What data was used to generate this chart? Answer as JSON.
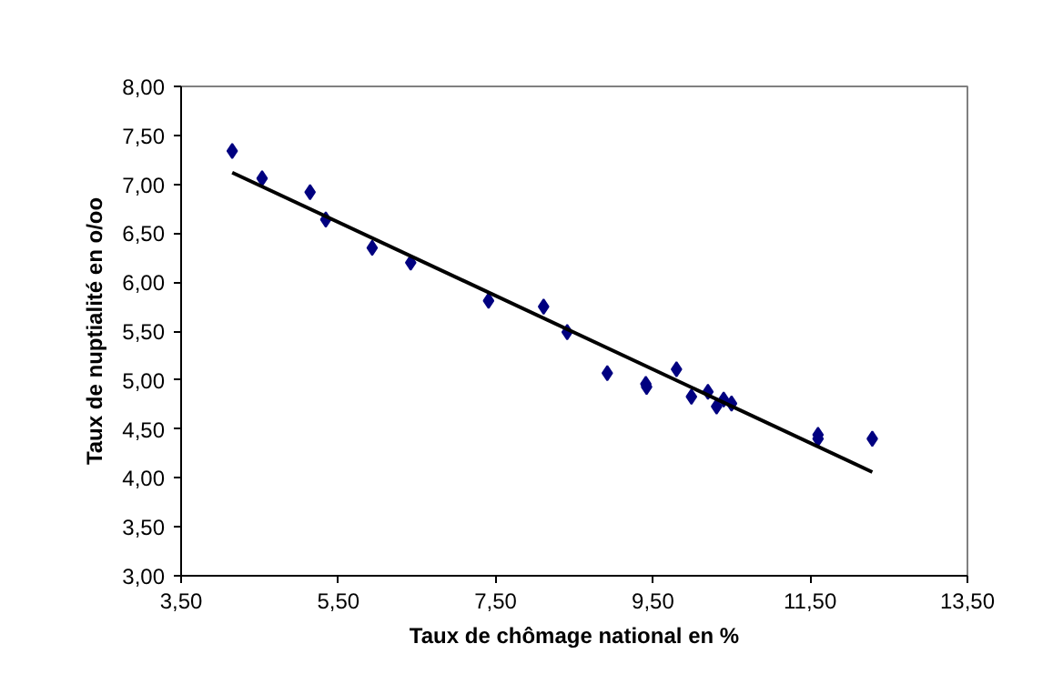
{
  "chart_data": {
    "type": "scatter",
    "xlabel": "Taux de chômage national en %",
    "ylabel": "Taux de nuptialité en o/oo",
    "xlim": [
      3.5,
      13.5
    ],
    "ylim": [
      3.0,
      8.0
    ],
    "xticks": [
      {
        "value": 3.5,
        "label": "3,50"
      },
      {
        "value": 5.5,
        "label": "5,50"
      },
      {
        "value": 7.5,
        "label": "7,50"
      },
      {
        "value": 9.5,
        "label": "9,50"
      },
      {
        "value": 11.5,
        "label": "11,50"
      },
      {
        "value": 13.5,
        "label": "13,50"
      }
    ],
    "yticks": [
      {
        "value": 3.0,
        "label": "3,00"
      },
      {
        "value": 3.5,
        "label": "3,50"
      },
      {
        "value": 4.0,
        "label": "4,00"
      },
      {
        "value": 4.5,
        "label": "4,50"
      },
      {
        "value": 5.0,
        "label": "5,00"
      },
      {
        "value": 5.5,
        "label": "5,50"
      },
      {
        "value": 6.0,
        "label": "6,00"
      },
      {
        "value": 6.5,
        "label": "6,50"
      },
      {
        "value": 7.0,
        "label": "7,00"
      },
      {
        "value": 7.5,
        "label": "7,50"
      },
      {
        "value": 8.0,
        "label": "8,00"
      }
    ],
    "grid": false,
    "marker": "diamond",
    "series": [
      {
        "color": "#000080",
        "x": [
          4.15,
          4.53,
          5.14,
          5.34,
          5.93,
          6.42,
          7.41,
          8.11,
          8.41,
          8.92,
          9.41,
          9.42,
          9.8,
          9.99,
          10.2,
          10.31,
          10.4,
          10.5,
          11.6,
          11.6,
          12.29
        ],
        "values": [
          7.34,
          7.06,
          6.92,
          6.64,
          6.35,
          6.2,
          5.81,
          5.75,
          5.49,
          5.07,
          4.96,
          4.93,
          5.11,
          4.83,
          4.88,
          4.73,
          4.8,
          4.76,
          4.44,
          4.4,
          4.4
        ]
      },
      {
        "type": "line",
        "color": "#000000",
        "x": [
          4.15,
          12.29
        ],
        "values": [
          7.12,
          4.06
        ],
        "line_style": "solid",
        "marker": "none"
      }
    ]
  }
}
